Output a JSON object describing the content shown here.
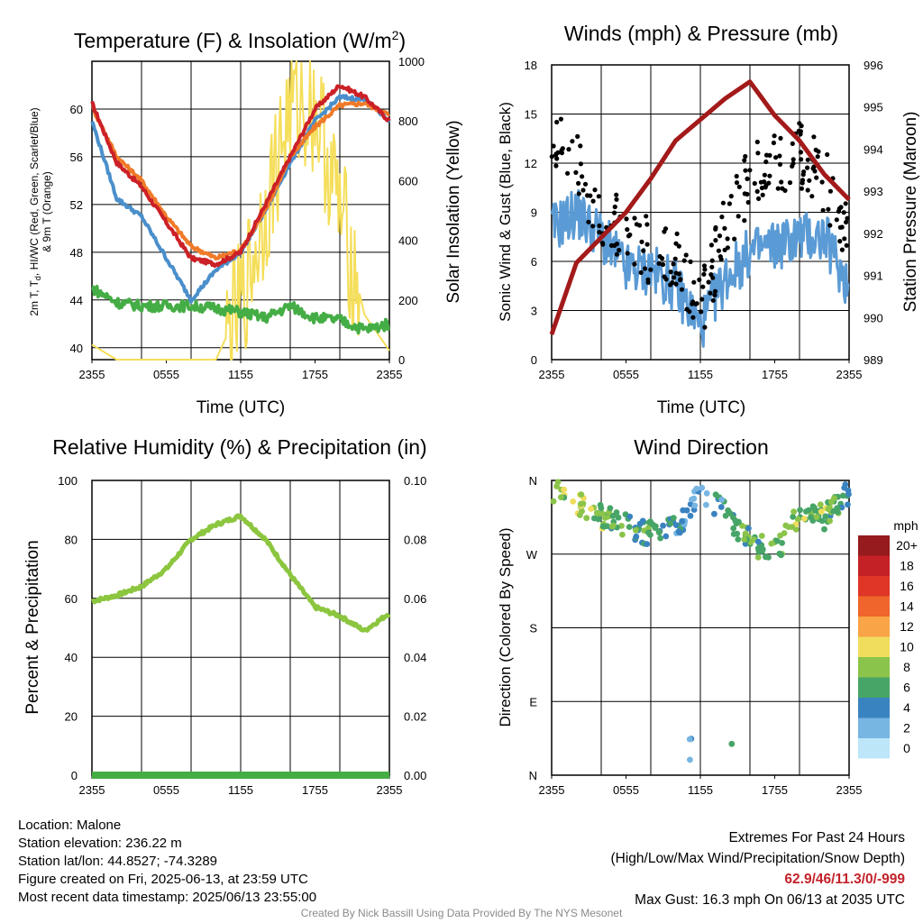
{
  "colors": {
    "t2m": "#cc2027",
    "td": "#45ad45",
    "hiwc_t": "#4a8fcb",
    "t9m": "#f07a28",
    "solar": "#f5de5a",
    "wind": "#5b9bd5",
    "gust": "#000000",
    "pressure": "#a31a1a",
    "rh": "#8cc63f",
    "precip": "#44ae44",
    "extremes": "#c4222a",
    "credit": "#8a8a8a"
  },
  "time_ticks": [
    "2355",
    "0555",
    "1155",
    "1755",
    "2355"
  ],
  "panels": {
    "temperature": {
      "title_main": "Temperature (F) & Insolation (W/m",
      "title_sup": "2",
      "title_end": ")",
      "ylabel_line1": "2m T, T",
      "ylabel_sub": "d",
      "ylabel_rest": ", HI/WC (Red, Green, Scarlet/Blue)",
      "ylabel_line2": "& 9m T (Orange)",
      "y2label": "Solar Insolation (Yellow)",
      "xlabel": "Time (UTC)"
    },
    "wind": {
      "title": "Winds (mph) & Pressure (mb)",
      "ylabel": "Sonic Wind & Gust (Blue, Black)",
      "y2label": "Station Pressure (Maroon)",
      "xlabel": "Time (UTC)"
    },
    "humidity": {
      "title": "Relative Humidity (%) & Precipitation (in)",
      "ylabel": "Percent & Precipitation"
    },
    "direction": {
      "title": "Wind Direction",
      "ylabel": "Direction (Colored By Speed)",
      "colorbar_title": "mph",
      "colorbar_labels": [
        "20+",
        "18",
        "16",
        "14",
        "12",
        "10",
        "8",
        "6",
        "4",
        "2",
        "0"
      ],
      "colorbar_colors": [
        "#951b1e",
        "#c42126",
        "#df3627",
        "#f0652b",
        "#f9a446",
        "#f0dd5d",
        "#8bc44a",
        "#47a567",
        "#3a83c1",
        "#77b5e3",
        "#bde6f8"
      ]
    }
  },
  "chart_data": [
    {
      "type": "line",
      "title": "Temperature (F) & Insolation (W/m2)",
      "xlabel": "Time (UTC)",
      "ylabel": "2m T, Td, HI/WC (Red, Green, Scarlet/Blue) & 9m T (Orange)",
      "y2label": "Solar Insolation (Yellow)",
      "x": [
        "2355",
        "0155",
        "0355",
        "0555",
        "0755",
        "0955",
        "1155",
        "1355",
        "1555",
        "1755",
        "1955",
        "2155",
        "2355"
      ],
      "ylim": [
        39,
        64
      ],
      "y2lim": [
        0,
        1000
      ],
      "yticks": [
        40,
        44,
        48,
        52,
        56,
        60
      ],
      "y2ticks": [
        0,
        200,
        400,
        600,
        800,
        1000
      ],
      "series": [
        {
          "name": "2m T",
          "color": "red",
          "values": [
            60.5,
            55.5,
            53.5,
            50.5,
            47.5,
            47,
            48,
            52,
            56,
            60,
            62,
            61,
            59
          ]
        },
        {
          "name": "9m T",
          "color": "orange",
          "values": [
            60.2,
            56,
            54,
            51,
            48.5,
            47.5,
            48.2,
            51.5,
            56,
            58.5,
            60.3,
            60.5,
            59.5
          ]
        },
        {
          "name": "HI/WC",
          "color": "blue",
          "values": [
            59,
            52.5,
            51,
            47.5,
            44,
            46.5,
            48,
            51.5,
            55.5,
            59,
            61,
            60.8,
            59
          ]
        },
        {
          "name": "Td",
          "color": "green",
          "values": [
            45,
            43.8,
            43.5,
            43.5,
            43.5,
            43.3,
            43,
            42.5,
            43.5,
            42.5,
            42.3,
            41.5,
            42
          ]
        },
        {
          "name": "Solar Insolation",
          "color": "yellow",
          "axis": "right",
          "values": [
            50,
            0,
            0,
            0,
            0,
            0,
            180,
            500,
            850,
            850,
            500,
            150,
            30
          ]
        }
      ]
    },
    {
      "type": "line",
      "title": "Winds (mph) & Pressure (mb)",
      "xlabel": "Time (UTC)",
      "ylabel": "Sonic Wind & Gust (Blue, Black)",
      "y2label": "Station Pressure (Maroon)",
      "x": [
        "2355",
        "0155",
        "0355",
        "0555",
        "0755",
        "0955",
        "1155",
        "1355",
        "1555",
        "1755",
        "1955",
        "2155",
        "2355"
      ],
      "ylim": [
        0,
        18
      ],
      "y2lim": [
        989,
        996
      ],
      "yticks": [
        0,
        3,
        6,
        9,
        12,
        15,
        18
      ],
      "y2ticks": [
        989,
        990,
        991,
        992,
        993,
        994,
        995,
        996
      ],
      "series": [
        {
          "name": "Sonic Wind",
          "color": "blue",
          "values": [
            8,
            9,
            7.5,
            5.5,
            5.5,
            4.5,
            2,
            5,
            6.5,
            7,
            7.5,
            7.5,
            4.5
          ]
        },
        {
          "name": "Gust",
          "color": "black",
          "values": [
            14,
            12,
            8.5,
            8,
            6.5,
            6,
            3,
            8,
            11,
            12,
            12.5,
            11,
            7
          ]
        },
        {
          "name": "Station Pressure",
          "color": "maroon",
          "axis": "right",
          "values": [
            989.6,
            991.3,
            991.9,
            992.5,
            993.3,
            994.2,
            994.7,
            995.2,
            995.6,
            994.8,
            994.2,
            993.4,
            992.8
          ]
        }
      ]
    },
    {
      "type": "line",
      "title": "Relative Humidity (%) & Precipitation (in)",
      "ylabel": "Percent & Precipitation",
      "x": [
        "2355",
        "0155",
        "0355",
        "0555",
        "0755",
        "0955",
        "1155",
        "1355",
        "1555",
        "1755",
        "1955",
        "2155",
        "2355"
      ],
      "ylim": [
        0,
        100
      ],
      "y2lim": [
        0,
        0.1
      ],
      "yticks": [
        0,
        20,
        40,
        60,
        80,
        100
      ],
      "y2ticks": [
        0.0,
        0.02,
        0.04,
        0.06,
        0.08,
        0.1
      ],
      "series": [
        {
          "name": "Relative Humidity",
          "color": "light green",
          "values": [
            59,
            61,
            64,
            70,
            80,
            85,
            88,
            80,
            68,
            57,
            54,
            49,
            55
          ]
        },
        {
          "name": "Precipitation",
          "color": "green",
          "axis": "right",
          "values": [
            0,
            0,
            0,
            0,
            0,
            0,
            0,
            0,
            0,
            0,
            0,
            0,
            0
          ]
        }
      ]
    },
    {
      "type": "scatter",
      "title": "Wind Direction",
      "ylabel": "Direction (Colored By Speed)",
      "x": [
        "2355",
        "0155",
        "0355",
        "0555",
        "0755",
        "0955",
        "1155",
        "1355",
        "1555",
        "1755",
        "1955",
        "2155",
        "2355"
      ],
      "yticks": [
        "N",
        "E",
        "S",
        "W",
        "N"
      ],
      "colorbar": {
        "title": "mph",
        "labels": [
          "20+",
          "18",
          "16",
          "14",
          "12",
          "10",
          "8",
          "6",
          "4",
          "2",
          "0"
        ]
      },
      "series": [
        {
          "name": "Wind Direction (deg)",
          "values": [
            350,
            335,
            315,
            305,
            295,
            300,
            345,
            320,
            285,
            270,
            320,
            315,
            345
          ]
        }
      ]
    }
  ],
  "info": {
    "location": "Location: Malone",
    "elevation": "Station elevation: 236.22 m",
    "latlon": "Station lat/lon: 44.8527; -74.3289",
    "created": "Figure created on Fri, 2025-06-13, at 23:59 UTC",
    "recent": "Most recent data timestamp: 2025/06/13 23:55:00"
  },
  "extremes": {
    "title": "Extremes For Past 24 Hours",
    "subtitle": "(High/Low/Max Wind/Precipitation/Snow Depth)",
    "values": "62.9/46/11.3/0/-999",
    "max_gust": "Max Gust: 16.3 mph On 06/13 at 2035 UTC"
  },
  "credit": "Created By Nick Bassill Using Data Provided By The NYS Mesonet"
}
